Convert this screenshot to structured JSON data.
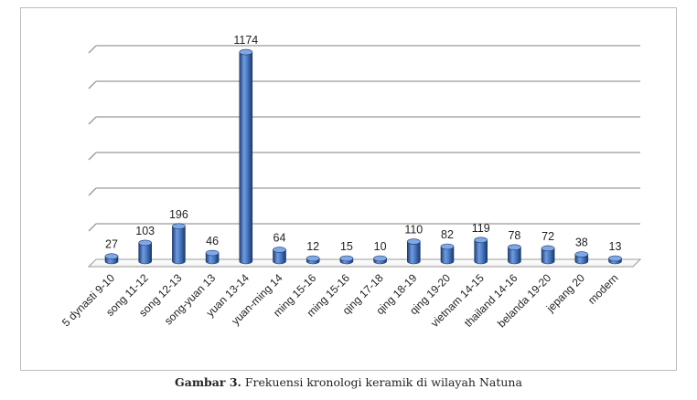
{
  "chart_data": {
    "type": "bar",
    "categories": [
      "5 dynasti 9-10",
      "song 11-12",
      "song 12-13",
      "song-yuan 13",
      "yuan 13-14",
      "yuan-ming 14",
      "ming 15-16",
      "ming 15-16",
      "qing 17-18",
      "qing 18-19",
      "qing 19-20",
      "vietnam 14-15",
      "thailand 14-16",
      "belanda 19-20",
      "jepang 20",
      "modern"
    ],
    "values": [
      27,
      103,
      196,
      46,
      1174,
      64,
      12,
      15,
      10,
      110,
      82,
      119,
      78,
      72,
      38,
      13
    ],
    "data_labels": [
      "27",
      "103",
      "196",
      "46",
      "1174",
      "64",
      "12",
      "15",
      "10",
      "110",
      "82",
      "119",
      "78",
      "72",
      "38",
      "13"
    ],
    "ylim": [
      0,
      1200
    ],
    "grid": true,
    "style": "3d-cylinder",
    "colors": {
      "bar": "#4a7cc4",
      "bar_dark": "#1f3f7a",
      "grid": "#9a9a9a"
    }
  },
  "caption": {
    "label": "Gambar 3.",
    "text": " Frekuensi kronologi keramik di wilayah Natuna"
  }
}
